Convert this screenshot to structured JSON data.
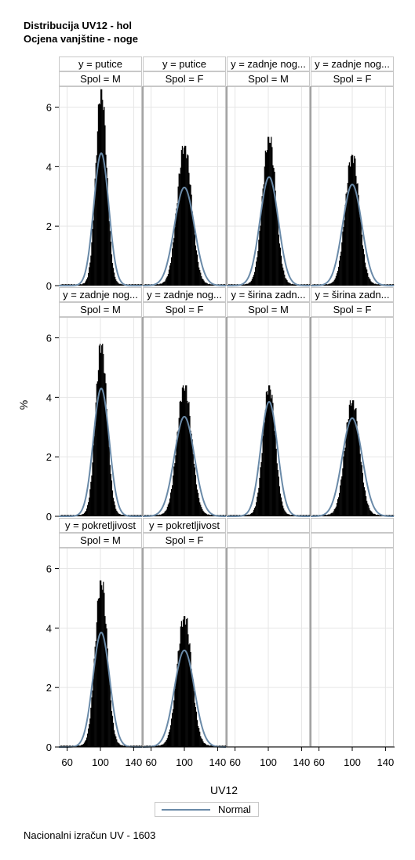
{
  "title_line1": "Distribucija UV12 - hol",
  "title_line2": "Ocjena vanjštine - noge",
  "footer": "Nacionalni izračun UV - 1603",
  "colors": {
    "histogram": "#000000",
    "normal_curve": "#6a8aa8",
    "header_bg": "#ffffff",
    "grid": "#e6e6e6"
  },
  "chart_data": {
    "type": "histogram",
    "xlabel": "UV12",
    "ylabel": "%",
    "x_ticks": [
      60,
      100,
      140
    ],
    "y_ticks": [
      0,
      2,
      4,
      6
    ],
    "xlim": [
      50,
      150
    ],
    "ylim": [
      0,
      6.7
    ],
    "grid": true,
    "legend": {
      "position": "bottom",
      "entries": [
        "Normal"
      ]
    },
    "panels": [
      {
        "y_label": "y = putice",
        "spol_label": "Spol = M",
        "peak_percent": 6.6,
        "normal_peak_percent": 4.45,
        "mean": 101,
        "sd": 9
      },
      {
        "y_label": "y = putice",
        "spol_label": "Spol = F",
        "peak_percent": 4.7,
        "normal_peak_percent": 3.3,
        "mean": 100,
        "sd": 12
      },
      {
        "y_label": "y = zadnje nog...",
        "spol_label": "Spol = M",
        "peak_percent": 5.0,
        "normal_peak_percent": 3.65,
        "mean": 101,
        "sd": 11
      },
      {
        "y_label": "y = zadnje nog...",
        "spol_label": "Spol = F",
        "peak_percent": 4.4,
        "normal_peak_percent": 3.4,
        "mean": 100,
        "sd": 11.5
      },
      {
        "y_label": "y = zadnje nog...",
        "spol_label": "Spol = M",
        "peak_percent": 5.8,
        "normal_peak_percent": 4.3,
        "mean": 101,
        "sd": 9.5
      },
      {
        "y_label": "y = zadnje nog...",
        "spol_label": "Spol = F",
        "peak_percent": 4.4,
        "normal_peak_percent": 3.35,
        "mean": 100,
        "sd": 12
      },
      {
        "y_label": "y = širina zadn...",
        "spol_label": "Spol = M",
        "peak_percent": 4.4,
        "normal_peak_percent": 3.85,
        "mean": 101,
        "sd": 10
      },
      {
        "y_label": "y = širina zadn...",
        "spol_label": "Spol = F",
        "peak_percent": 3.9,
        "normal_peak_percent": 3.3,
        "mean": 100,
        "sd": 12
      },
      {
        "y_label": "y = pokretljivost",
        "spol_label": "Spol = M",
        "peak_percent": 5.6,
        "normal_peak_percent": 3.85,
        "mean": 101,
        "sd": 10
      },
      {
        "y_label": "y = pokretljivost",
        "spol_label": "Spol = F",
        "peak_percent": 4.4,
        "normal_peak_percent": 3.25,
        "mean": 100,
        "sd": 12
      }
    ]
  }
}
